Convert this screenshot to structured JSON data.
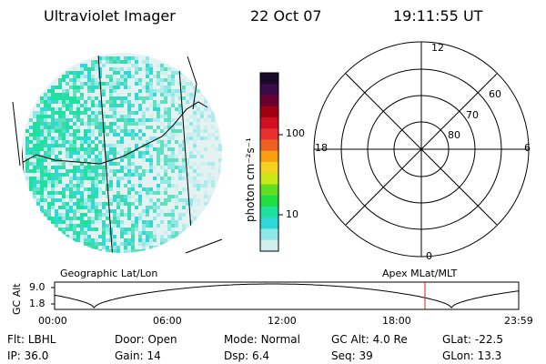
{
  "header": {
    "instrument": "Ultraviolet Imager",
    "date": "22 Oct 07",
    "time": "19:11:55 UT"
  },
  "geo_panel": {
    "label": "Geographic Lat/Lon"
  },
  "colorbar": {
    "unit_label": "photon cm⁻²s⁻¹",
    "tick_labels": [
      "100",
      "10"
    ],
    "colors": [
      "#1a0a2a",
      "#3a0a4a",
      "#6a0030",
      "#a00010",
      "#d01020",
      "#e83030",
      "#f06020",
      "#f8a010",
      "#f8d020",
      "#c8e818",
      "#60e020",
      "#20e040",
      "#20e0a0",
      "#30d8d8",
      "#90e8e8",
      "#d0f0f0"
    ]
  },
  "polar_panel": {
    "label": "Apex MLat/MLT",
    "mlt_labels": {
      "top": "12",
      "left": "18",
      "right": "6",
      "bottom": "0"
    },
    "lat_labels": [
      "60",
      "70",
      "80"
    ]
  },
  "alt_plot": {
    "y_label": "GC Alt",
    "y_ticks": [
      "9.0",
      "1.8"
    ],
    "x_ticks": [
      "00:00",
      "06:00",
      "12:00",
      "18:00",
      "23:59"
    ],
    "marker_color": "#cc2020"
  },
  "info": {
    "row1": [
      {
        "label": "Flt:",
        "value": "LBHL"
      },
      {
        "label": "Door:",
        "value": "Open"
      },
      {
        "label": "Mode:",
        "value": "Normal"
      },
      {
        "label": "GC Alt:",
        "value": "4.0 Re"
      },
      {
        "label": "GLat:",
        "value": "-22.5"
      }
    ],
    "row2": [
      {
        "label": "IP:",
        "value": "36.0"
      },
      {
        "label": "Gain:",
        "value": "14"
      },
      {
        "label": "Dsp:",
        "value": "6.4"
      },
      {
        "label": "Seq:",
        "value": "39"
      },
      {
        "label": "GLon:",
        "value": "13.3"
      }
    ]
  }
}
